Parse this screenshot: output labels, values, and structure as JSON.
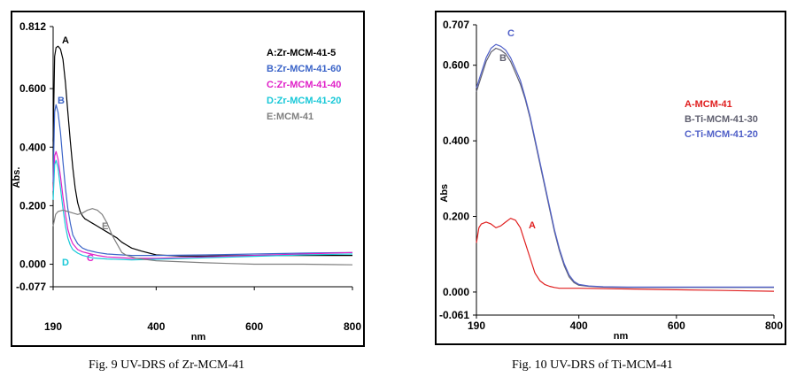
{
  "chart_data": [
    {
      "type": "line",
      "title": "",
      "caption": "Fig. 9 UV-DRS of Zr-MCM-41",
      "xlabel": "nm",
      "ylabel": "Abs.",
      "xlim": [
        190,
        800
      ],
      "ylim": [
        -0.077,
        0.812
      ],
      "xticks": [
        190,
        400,
        600,
        800
      ],
      "yticks": [
        -0.077,
        0.0,
        0.2,
        0.4,
        0.6,
        0.812
      ],
      "ytick_labels": [
        "-0.077",
        "0.000",
        "0.200",
        "0.400",
        "0.600",
        "0.812"
      ],
      "legend_position": "top-right",
      "series": [
        {
          "name": "A:Zr-MCM-41-5",
          "label": "A",
          "color": "#000000",
          "x": [
            190,
            193,
            196,
            200,
            205,
            210,
            215,
            220,
            225,
            230,
            235,
            240,
            245,
            250,
            255,
            260,
            265,
            270,
            280,
            290,
            300,
            310,
            320,
            330,
            340,
            350,
            370,
            400,
            450,
            500,
            600,
            700,
            800
          ],
          "y": [
            0.42,
            0.71,
            0.74,
            0.745,
            0.735,
            0.7,
            0.62,
            0.52,
            0.42,
            0.33,
            0.26,
            0.21,
            0.18,
            0.165,
            0.155,
            0.15,
            0.145,
            0.14,
            0.13,
            0.12,
            0.11,
            0.1,
            0.09,
            0.075,
            0.065,
            0.055,
            0.045,
            0.032,
            0.028,
            0.028,
            0.03,
            0.03,
            0.03
          ]
        },
        {
          "name": "B:Zr-MCM-41-60",
          "label": "B",
          "color": "#3b64c8",
          "x": [
            190,
            193,
            196,
            200,
            205,
            210,
            215,
            220,
            225,
            230,
            240,
            250,
            260,
            270,
            280,
            300,
            350,
            400,
            500,
            600,
            700,
            800
          ],
          "y": [
            0.28,
            0.52,
            0.545,
            0.52,
            0.45,
            0.35,
            0.26,
            0.19,
            0.14,
            0.1,
            0.07,
            0.055,
            0.048,
            0.044,
            0.04,
            0.035,
            0.03,
            0.03,
            0.032,
            0.035,
            0.038,
            0.04
          ]
        },
        {
          "name": "C:Zr-MCM-41-40",
          "label": "C",
          "color": "#e020c8",
          "x": [
            190,
            193,
            196,
            200,
            205,
            210,
            215,
            220,
            225,
            230,
            240,
            250,
            260,
            270,
            280,
            300,
            350,
            400,
            500,
            600,
            700,
            800
          ],
          "y": [
            0.25,
            0.37,
            0.385,
            0.36,
            0.3,
            0.23,
            0.17,
            0.12,
            0.09,
            0.07,
            0.05,
            0.042,
            0.038,
            0.034,
            0.03,
            0.025,
            0.02,
            0.02,
            0.025,
            0.03,
            0.035,
            0.04
          ]
        },
        {
          "name": "D:Zr-MCM-41-20",
          "label": "D",
          "color": "#18c8d8",
          "x": [
            190,
            193,
            196,
            200,
            205,
            210,
            215,
            220,
            225,
            230,
            240,
            250,
            260,
            270,
            280,
            300,
            350,
            400,
            500,
            600,
            700,
            800
          ],
          "y": [
            0.22,
            0.34,
            0.355,
            0.33,
            0.26,
            0.19,
            0.13,
            0.09,
            0.065,
            0.05,
            0.038,
            0.03,
            0.026,
            0.022,
            0.02,
            0.018,
            0.015,
            0.017,
            0.022,
            0.027,
            0.032,
            0.035
          ]
        },
        {
          "name": "E:MCM-41",
          "label": "E",
          "color": "#808080",
          "x": [
            190,
            195,
            200,
            210,
            220,
            230,
            240,
            250,
            260,
            270,
            280,
            290,
            300,
            310,
            320,
            330,
            340,
            360,
            400,
            500,
            600,
            700,
            800
          ],
          "y": [
            0.13,
            0.17,
            0.18,
            0.185,
            0.18,
            0.175,
            0.17,
            0.175,
            0.185,
            0.19,
            0.185,
            0.17,
            0.14,
            0.1,
            0.07,
            0.04,
            0.03,
            0.02,
            0.012,
            0.005,
            0.0,
            0.0,
            -0.002
          ]
        }
      ]
    },
    {
      "type": "line",
      "title": "",
      "caption": "Fig. 10 UV-DRS of Ti-MCM-41",
      "xlabel": "nm",
      "ylabel": "Abs",
      "xlim": [
        190,
        800
      ],
      "ylim": [
        -0.061,
        0.707
      ],
      "xticks": [
        190,
        400,
        600,
        800
      ],
      "yticks": [
        -0.061,
        0.0,
        0.2,
        0.4,
        0.6,
        0.707
      ],
      "ytick_labels": [
        "-0.061",
        "0.000",
        "0.200",
        "0.400",
        "0.600",
        "0.707"
      ],
      "legend_position": "center-right",
      "series": [
        {
          "name": "A-MCM-41",
          "label": "A",
          "color": "#e02020",
          "x": [
            190,
            195,
            200,
            210,
            220,
            230,
            240,
            250,
            260,
            270,
            280,
            290,
            300,
            310,
            320,
            330,
            340,
            350,
            360,
            380,
            400,
            500,
            600,
            700,
            800
          ],
          "y": [
            0.13,
            0.17,
            0.18,
            0.185,
            0.18,
            0.17,
            0.175,
            0.185,
            0.195,
            0.19,
            0.17,
            0.13,
            0.09,
            0.05,
            0.03,
            0.02,
            0.015,
            0.012,
            0.01,
            0.01,
            0.01,
            0.008,
            0.006,
            0.004,
            0.002
          ]
        },
        {
          "name": "B-Ti-MCM-41-30",
          "label": "B",
          "color": "#606070",
          "x": [
            190,
            200,
            210,
            220,
            230,
            240,
            250,
            260,
            270,
            280,
            290,
            300,
            310,
            320,
            330,
            340,
            350,
            360,
            370,
            380,
            390,
            400,
            420,
            450,
            500,
            600,
            700,
            800
          ],
          "y": [
            0.53,
            0.57,
            0.61,
            0.635,
            0.645,
            0.64,
            0.63,
            0.61,
            0.58,
            0.55,
            0.51,
            0.46,
            0.4,
            0.34,
            0.28,
            0.22,
            0.16,
            0.11,
            0.07,
            0.04,
            0.025,
            0.018,
            0.015,
            0.013,
            0.012,
            0.012,
            0.012,
            0.012
          ]
        },
        {
          "name": "C-Ti-MCM-41-20",
          "label": "C",
          "color": "#5060c8",
          "x": [
            190,
            200,
            210,
            220,
            230,
            240,
            250,
            260,
            270,
            280,
            290,
            300,
            310,
            320,
            330,
            340,
            350,
            360,
            370,
            380,
            390,
            400,
            420,
            450,
            500,
            600,
            700,
            800
          ],
          "y": [
            0.54,
            0.58,
            0.62,
            0.645,
            0.655,
            0.65,
            0.64,
            0.62,
            0.59,
            0.56,
            0.515,
            0.465,
            0.405,
            0.345,
            0.285,
            0.225,
            0.165,
            0.115,
            0.075,
            0.045,
            0.028,
            0.02,
            0.016,
            0.014,
            0.013,
            0.013,
            0.013,
            0.013
          ]
        }
      ]
    }
  ]
}
